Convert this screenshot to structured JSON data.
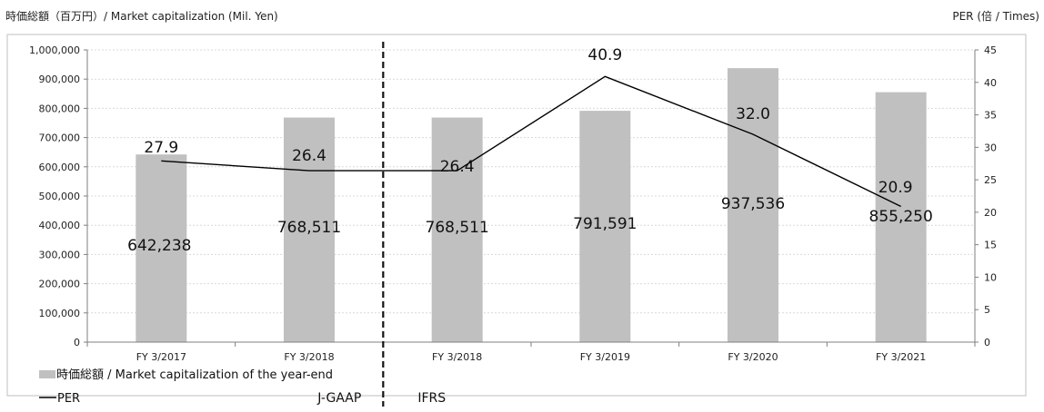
{
  "chart_data": {
    "type": "bar",
    "categories": [
      "FY 3/2017",
      "FY 3/2018",
      "FY 3/2018",
      "FY 3/2019",
      "FY 3/2020",
      "FY 3/2021"
    ],
    "series": [
      {
        "name": "時価総額 / Market capitalization of the year-end",
        "type": "bar",
        "axis": "left",
        "values": [
          642238,
          768511,
          768511,
          791591,
          937536,
          855250
        ],
        "labels": [
          "642,238",
          "768,511",
          "768,511",
          "791,591",
          "937,536",
          "855,250"
        ],
        "color": "#c0c0c0"
      },
      {
        "name": "PER",
        "type": "line",
        "axis": "right",
        "values": [
          27.9,
          26.4,
          26.4,
          40.9,
          32.0,
          20.9
        ],
        "labels": [
          "27.9",
          "26.4",
          "26.4",
          "40.9",
          "32.0",
          "20.9"
        ],
        "color": "#000000"
      }
    ],
    "y_left": {
      "label": "時価総額（百万円）/ Market capitalization (Mil. Yen)",
      "range": [
        0,
        1000000
      ],
      "ticks": [
        "0",
        "100,000",
        "200,000",
        "300,000",
        "400,000",
        "500,000",
        "600,000",
        "700,000",
        "800,000",
        "900,000",
        "1,000,000"
      ]
    },
    "y_right": {
      "label": "PER (倍 / Times)",
      "range": [
        0,
        45
      ],
      "ticks": [
        "0",
        "5",
        "10",
        "15",
        "20",
        "25",
        "30",
        "35",
        "40",
        "45"
      ]
    },
    "regions": [
      {
        "label": "J-GAAP"
      },
      {
        "label": "IFRS"
      }
    ],
    "grid": true,
    "legend_position": "bottom-left"
  }
}
